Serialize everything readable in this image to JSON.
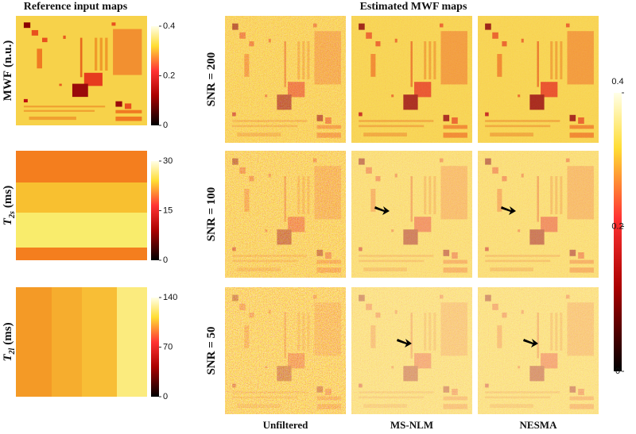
{
  "headers": {
    "left": "Reference input maps",
    "right": "Estimated MWF maps"
  },
  "reference_rows": [
    {
      "label": {
        "symbol": "MWF",
        "subscript": "",
        "unit": "(n.u.)"
      },
      "colorbar_ticks": [
        "0.4",
        "0.2",
        "0"
      ]
    },
    {
      "label": {
        "symbol": "T",
        "subscript": "2s",
        "unit": "(ms)"
      },
      "colorbar_ticks": [
        "30",
        "15",
        "0"
      ]
    },
    {
      "label": {
        "symbol": "T",
        "subscript": "2l",
        "unit": "(ms)"
      },
      "colorbar_ticks": [
        "140",
        "70",
        "0"
      ]
    }
  ],
  "snr_rows": [
    "SNR = 200",
    "SNR = 100",
    "SNR = 50"
  ],
  "columns": [
    "Unfiltered",
    "MS-NLM",
    "NESMA"
  ],
  "estimated_colorbar_ticks": [
    "0.4",
    "0.2",
    "0"
  ]
}
